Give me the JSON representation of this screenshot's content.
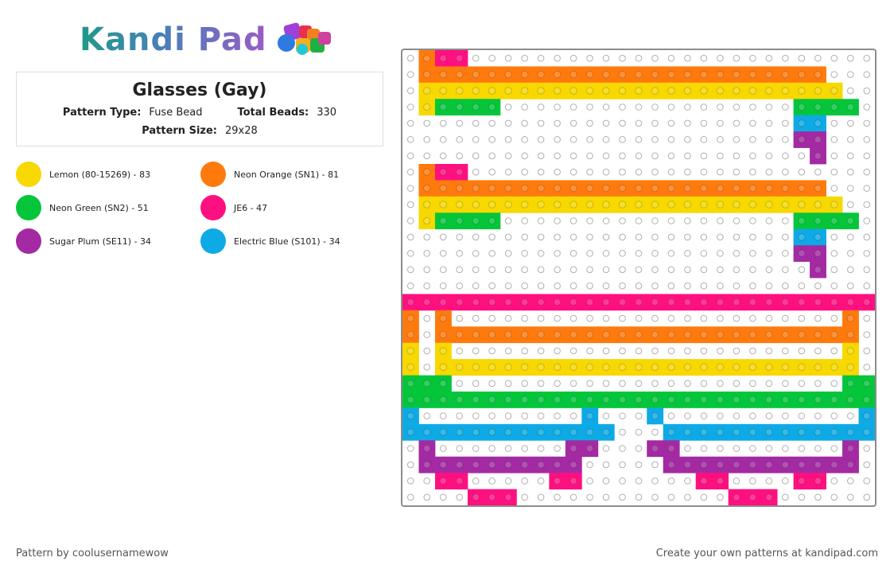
{
  "logo": {
    "text": "Kandi Pad",
    "icon": "beads-icon"
  },
  "pattern": {
    "title": "Glasses (Gay)",
    "type_label": "Pattern Type:",
    "type_value": "Fuse Bead",
    "total_label": "Total Beads:",
    "total_value": "330",
    "size_label": "Pattern Size:",
    "size_value": "29x28"
  },
  "colors": [
    {
      "label": "Lemon (80-15269) - 83",
      "hex": "#f7d800"
    },
    {
      "label": "Neon Orange (SN1) - 81",
      "hex": "#ff7a0d"
    },
    {
      "label": "Neon Green (SN2) - 51",
      "hex": "#05c63b"
    },
    {
      "label": "JE6 - 47",
      "hex": "#ff1080"
    },
    {
      "label": "Sugar Plum (SE11) - 34",
      "hex": "#a32aa2"
    },
    {
      "label": "Electric Blue (S101) - 34",
      "hex": "#0eaae5"
    }
  ],
  "footer": {
    "left": "Pattern by coolusernamewow",
    "right": "Create your own patterns at kandipad.com"
  },
  "bead_grid": {
    "legend": {
      "Y": "#f7d800",
      "O": "#ff7a0d",
      "G": "#05c63b",
      "P": "#ff1080",
      "U": "#a32aa2",
      "B": "#0eaae5"
    },
    "rows": [
      ".OPP.........................",
      ".OOOOOOOOOOOOOOOOOOOOOOOOO...",
      ".YYYYYYYYYYYYYYYYYYYYYYYYYY..",
      ".YGGGG..................GGGG.",
      "........................BB...",
      "........................UU...",
      ".........................U...",
      ".OPP.........................",
      ".OOOOOOOOOOOOOOOOOOOOOOOOO...",
      ".YYYYYYYYYYYYYYYYYYYYYYYYYY..",
      ".YGGGG..................GGGG.",
      "........................BB...",
      "........................UU...",
      ".........................U...",
      "..............................",
      "PPPPPPPPPPPPPPPPPPPPPPPPPPPPP",
      "O.O........................O.O",
      "O.OOOOOOOOOOOOOOOOOOOOOOOOOO.O",
      "Y.Y........................Y.Y",
      "Y.YYYYYYYYYYYYYYYYYYYYYYYYYY.Y",
      "GGG........................GGG",
      "GGGGGGGGGGGGGGGGGGGGGGGGGGGGG",
      "B..........B...B............B",
      "BBBBBBBBBBBBB...BBBBBBBBBBBBB",
      ".U........UU...UU..........U.",
      ".UUUUUUUUUU.....UUUUUUUUUUUU.",
      "..PP.....PP.......PP....PP...",
      "....PPP.............PPP......"
    ]
  }
}
